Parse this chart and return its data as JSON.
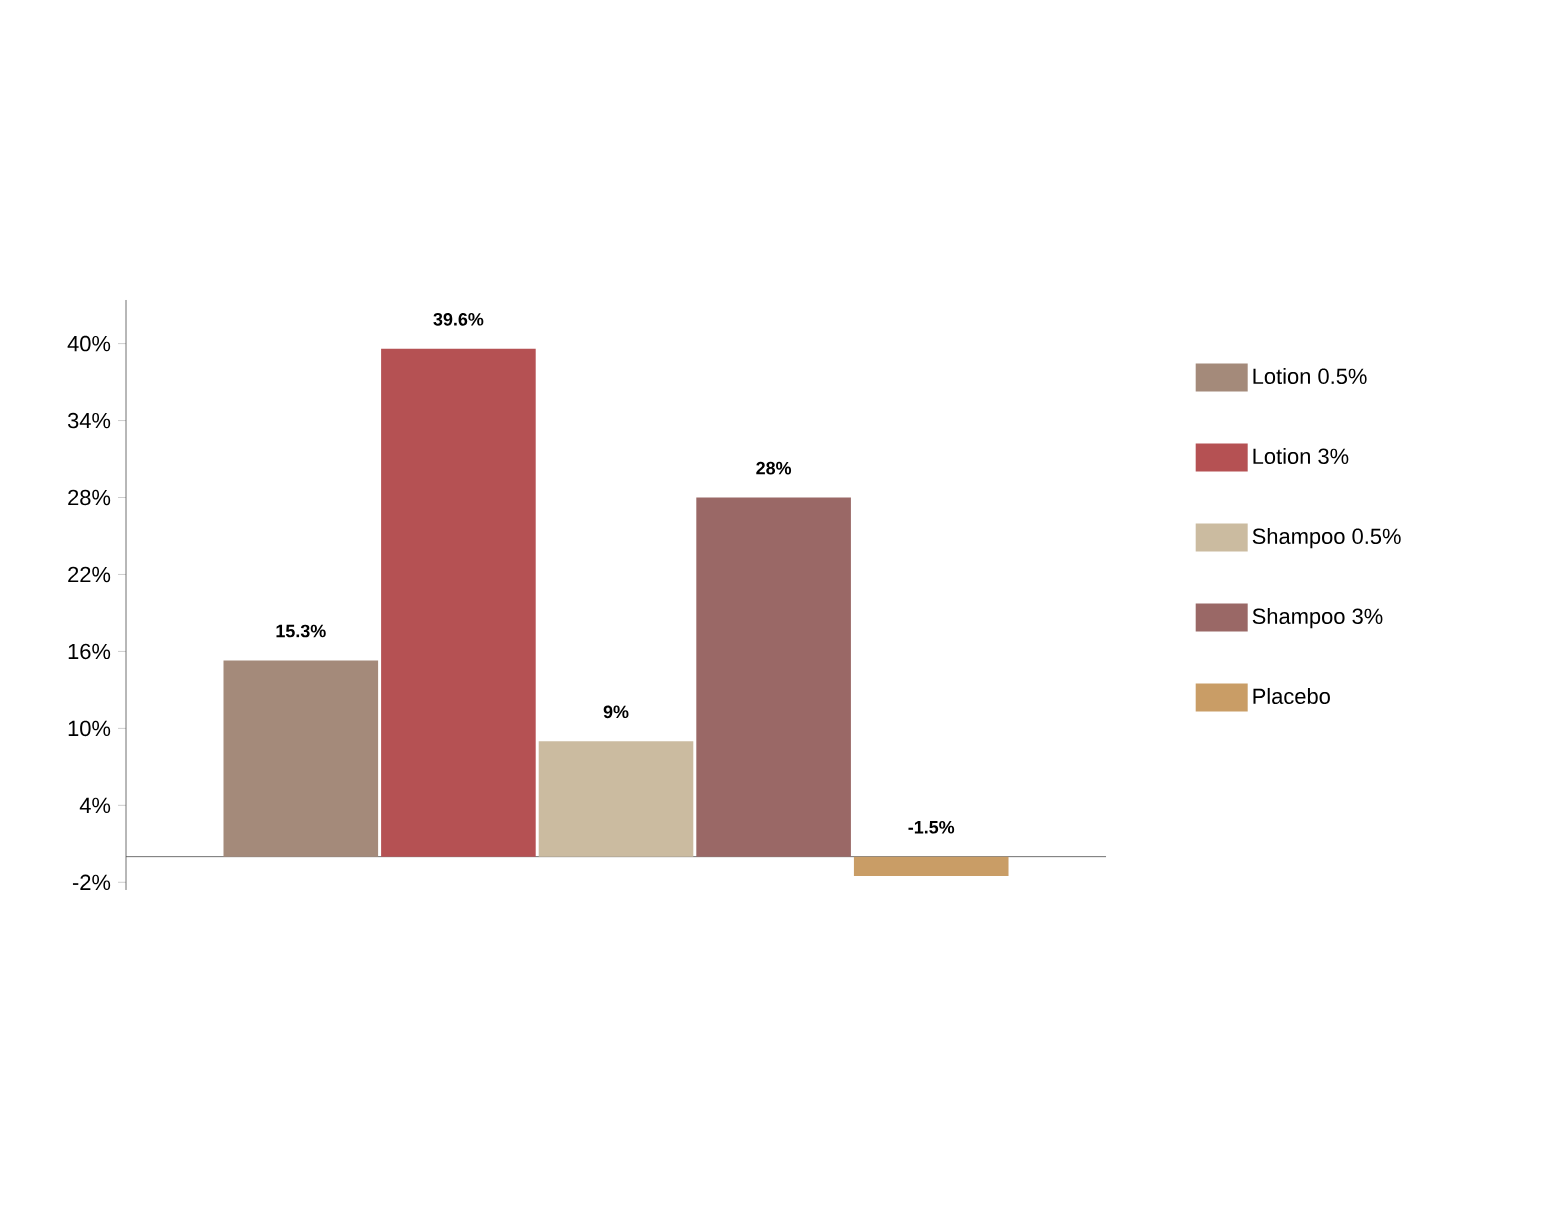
{
  "chart_data": {
    "type": "bar",
    "categories": [
      null
    ],
    "series": [
      {
        "name": "Lotion 0.5%",
        "color": "#a48a7a",
        "values": [
          15.3
        ],
        "value_labels": [
          "15.3%"
        ]
      },
      {
        "name": "Lotion 3%",
        "color": "#b55153",
        "values": [
          39.6
        ],
        "value_labels": [
          "39.6%"
        ]
      },
      {
        "name": "Shampoo 0.5%",
        "color": "#cbbba0",
        "values": [
          9
        ],
        "value_labels": [
          "9%"
        ]
      },
      {
        "name": "Shampoo 3%",
        "color": "#9a6866",
        "values": [
          28
        ],
        "value_labels": [
          "28%"
        ]
      },
      {
        "name": "Placebo",
        "color": "#c99d66",
        "values": [
          -1.5
        ],
        "value_labels": [
          "-1.5%"
        ]
      }
    ],
    "ylim": [
      -2.6,
      43.4
    ],
    "yticks": [
      {
        "value": -2,
        "label": "-2%"
      },
      {
        "value": 4,
        "label": "4%"
      },
      {
        "value": 10,
        "label": "10%"
      },
      {
        "value": 16,
        "label": "16%"
      },
      {
        "value": 22,
        "label": "22%"
      },
      {
        "value": 28,
        "label": "28%"
      },
      {
        "value": 34,
        "label": "34%"
      },
      {
        "value": 40,
        "label": "40%"
      }
    ],
    "grid": false,
    "legend": "right"
  }
}
